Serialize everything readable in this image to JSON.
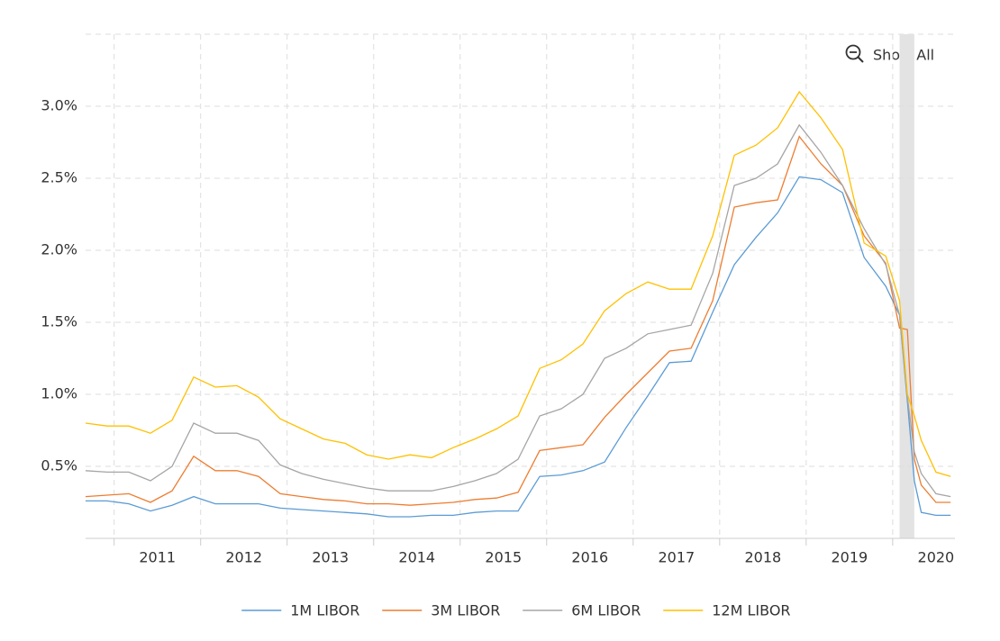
{
  "chart_data": {
    "type": "line",
    "zoom_button": "Show All",
    "x": [
      2010.67,
      2010.92,
      2011.17,
      2011.42,
      2011.67,
      2011.92,
      2012.17,
      2012.42,
      2012.67,
      2012.92,
      2013.17,
      2013.42,
      2013.67,
      2013.92,
      2014.17,
      2014.42,
      2014.67,
      2014.92,
      2015.17,
      2015.42,
      2015.67,
      2015.92,
      2016.17,
      2016.42,
      2016.67,
      2016.92,
      2017.17,
      2017.42,
      2017.67,
      2017.92,
      2018.17,
      2018.42,
      2018.67,
      2018.92,
      2019.17,
      2019.42,
      2019.67,
      2019.92,
      2020.08,
      2020.17,
      2020.25,
      2020.33,
      2020.5,
      2020.67
    ],
    "series": [
      {
        "name": "1M LIBOR",
        "color": "#5b9bd5",
        "values": [
          0.26,
          0.26,
          0.24,
          0.19,
          0.23,
          0.29,
          0.24,
          0.24,
          0.24,
          0.21,
          0.2,
          0.19,
          0.18,
          0.17,
          0.15,
          0.15,
          0.16,
          0.16,
          0.18,
          0.19,
          0.19,
          0.43,
          0.44,
          0.47,
          0.53,
          0.77,
          0.99,
          1.22,
          1.23,
          1.57,
          1.9,
          2.09,
          2.26,
          2.51,
          2.49,
          2.4,
          1.95,
          1.75,
          1.55,
          0.95,
          0.4,
          0.18,
          0.16,
          0.16
        ]
      },
      {
        "name": "3M LIBOR",
        "color": "#ed7d31",
        "values": [
          0.29,
          0.3,
          0.31,
          0.25,
          0.33,
          0.57,
          0.47,
          0.47,
          0.43,
          0.31,
          0.29,
          0.27,
          0.26,
          0.24,
          0.24,
          0.23,
          0.24,
          0.25,
          0.27,
          0.28,
          0.32,
          0.61,
          0.63,
          0.65,
          0.84,
          1.0,
          1.15,
          1.3,
          1.32,
          1.65,
          2.3,
          2.33,
          2.35,
          2.79,
          2.6,
          2.45,
          2.1,
          1.91,
          1.46,
          1.45,
          0.55,
          0.37,
          0.25,
          0.25
        ]
      },
      {
        "name": "6M LIBOR",
        "color": "#a5a5a5",
        "values": [
          0.47,
          0.46,
          0.46,
          0.4,
          0.5,
          0.8,
          0.73,
          0.73,
          0.68,
          0.51,
          0.45,
          0.41,
          0.38,
          0.35,
          0.33,
          0.33,
          0.33,
          0.36,
          0.4,
          0.45,
          0.55,
          0.85,
          0.9,
          1.0,
          1.25,
          1.32,
          1.42,
          1.45,
          1.48,
          1.84,
          2.45,
          2.5,
          2.6,
          2.87,
          2.68,
          2.45,
          2.15,
          1.9,
          1.55,
          0.98,
          0.6,
          0.45,
          0.31,
          0.29
        ]
      },
      {
        "name": "12M LIBOR",
        "color": "#ffc000",
        "values": [
          0.8,
          0.78,
          0.78,
          0.73,
          0.82,
          1.12,
          1.05,
          1.06,
          0.98,
          0.83,
          0.76,
          0.69,
          0.66,
          0.58,
          0.55,
          0.58,
          0.56,
          0.63,
          0.69,
          0.76,
          0.85,
          1.18,
          1.24,
          1.35,
          1.58,
          1.7,
          1.78,
          1.73,
          1.73,
          2.1,
          2.66,
          2.73,
          2.85,
          3.1,
          2.92,
          2.7,
          2.05,
          1.96,
          1.65,
          1.0,
          0.85,
          0.68,
          0.46,
          0.43
        ]
      }
    ],
    "recession": [
      2020.08,
      2020.25
    ],
    "xlim": [
      2010.67,
      2020.72
    ],
    "xticks": [
      2011,
      2012,
      2013,
      2014,
      2015,
      2016,
      2017,
      2018,
      2019,
      2020
    ],
    "ylim": [
      0,
      3.5
    ],
    "yticks": [
      {
        "value": 0.5,
        "label": "0.5%"
      },
      {
        "value": 1.0,
        "label": "1.0%"
      },
      {
        "value": 1.5,
        "label": "1.5%"
      },
      {
        "value": 2.0,
        "label": "2.0%"
      },
      {
        "value": 2.5,
        "label": "2.5%"
      },
      {
        "value": 3.0,
        "label": "3.0%"
      }
    ],
    "grid": true,
    "legend": "bottom"
  }
}
